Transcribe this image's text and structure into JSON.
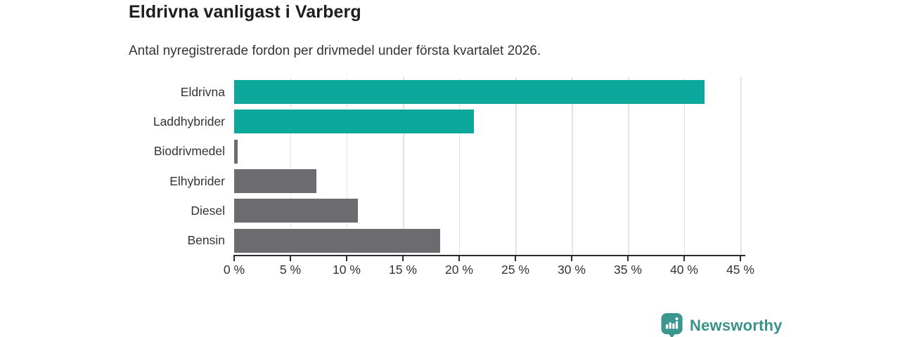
{
  "header": {
    "title": "Eldrivna vanligast i Varberg",
    "subtitle": "Antal nyregistrerade fordon per drivmedel under första kvartalet 2026."
  },
  "chart_data": {
    "type": "bar",
    "orientation": "horizontal",
    "title": "Eldrivna vanligast i Varberg",
    "subtitle": "Antal nyregistrerade fordon per drivmedel under första kvartalet 2026.",
    "categories": [
      "Eldrivna",
      "Laddhybrider",
      "Biodrivmedel",
      "Elhybrider",
      "Diesel",
      "Bensin"
    ],
    "values": [
      41.8,
      21.3,
      0.3,
      7.3,
      11.0,
      18.3
    ],
    "unit": "%",
    "xlim": [
      0,
      45
    ],
    "x_ticks": [
      0,
      5,
      10,
      15,
      20,
      25,
      30,
      35,
      40,
      45
    ],
    "x_tick_labels": [
      "0 %",
      "5 %",
      "10 %",
      "15 %",
      "20 %",
      "25 %",
      "30 %",
      "35 %",
      "40 %",
      "45 %"
    ],
    "bar_colors": [
      "#0ca89b",
      "#0ca89b",
      "#6b6b70",
      "#6b6b70",
      "#6b6b70",
      "#6b6b70"
    ],
    "grid": true,
    "legend": false
  },
  "branding": {
    "logo_text": "Newsworthy",
    "logo_icon": "bar-chart-speech-bubble-icon",
    "logo_color": "#38918a",
    "logo_icon_color": "#3b968e"
  },
  "colors": {
    "accent_teal": "#0ca89b",
    "neutral_gray": "#6b6b70",
    "gridline": "#e3e3e3",
    "axis": "#2b2b2b",
    "text": "#333333",
    "title_text": "#1d1d1d"
  }
}
